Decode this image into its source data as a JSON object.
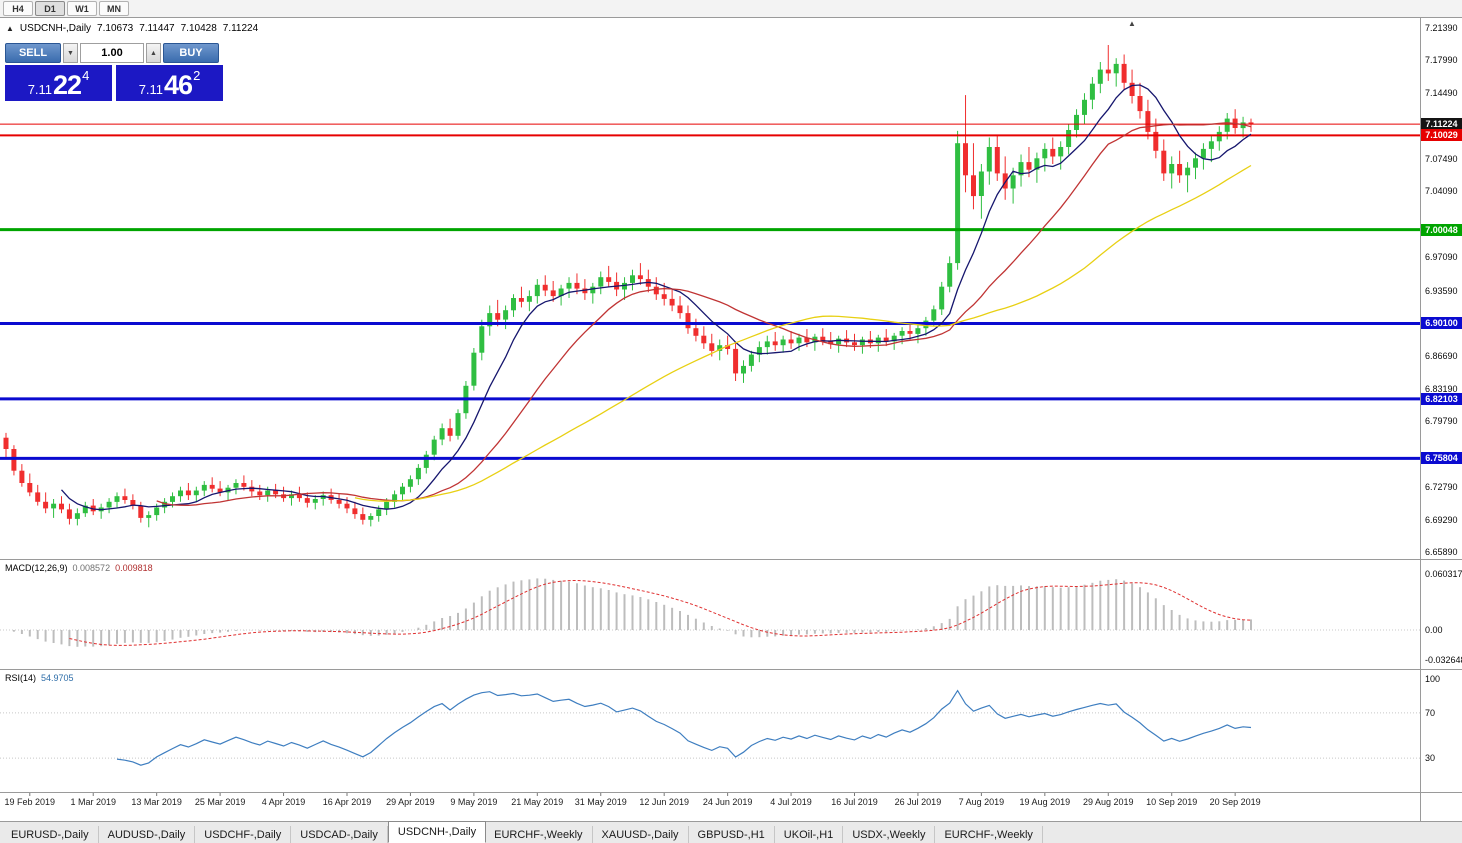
{
  "toolbar": {
    "timeframes": [
      {
        "label": "H4",
        "active": false
      },
      {
        "label": "D1",
        "active": true
      },
      {
        "label": "W1",
        "active": false
      },
      {
        "label": "MN",
        "active": false
      }
    ]
  },
  "header": {
    "collapse_icon": "▲",
    "symbol": "USDCNH-,Daily",
    "open": "7.10673",
    "high": "7.11447",
    "low": "7.10428",
    "close": "7.11224",
    "shift_marker_icon": "▲"
  },
  "trade_panel": {
    "sell_label": "SELL",
    "buy_label": "BUY",
    "volume": "1.00",
    "spinner_down_icon": "▼",
    "spinner_up_icon": "▲",
    "bid": {
      "prefix": "7.11",
      "big": "22",
      "sup": "4"
    },
    "ask": {
      "prefix": "7.11",
      "big": "46",
      "sup": "2"
    }
  },
  "indicator_labels": {
    "macd_name": "MACD(12,26,9)",
    "macd_value": "0.008572",
    "macd_signal_value": "0.009818",
    "rsi_name": "RSI(14)",
    "rsi_value": "54.9705"
  },
  "price_axis": {
    "ticks": [
      "7.21390",
      "7.17990",
      "7.14490",
      "7.07490",
      "7.04090",
      "6.97090",
      "6.93590",
      "6.86690",
      "6.83190",
      "6.79790",
      "6.72790",
      "6.69290",
      "6.65890"
    ],
    "badges": [
      {
        "text": "7.11224",
        "price": 7.11224,
        "bg": "#141414"
      },
      {
        "text": "7.10029",
        "price": 7.10029,
        "bg": "#e60000"
      },
      {
        "text": "7.00048",
        "price": 7.00048,
        "bg": "#00a400"
      },
      {
        "text": "6.90100",
        "price": 6.901,
        "bg": "#0b0bd0"
      },
      {
        "text": "6.82103",
        "price": 6.82103,
        "bg": "#0b0bd0"
      },
      {
        "text": "6.75804",
        "price": 6.75804,
        "bg": "#0b0bd0"
      }
    ]
  },
  "macd_axis": [
    {
      "text": "0.060317",
      "value": 0.060317
    },
    {
      "text": "0.00",
      "value": 0.0
    },
    {
      "text": "-0.032648",
      "value": -0.032648
    }
  ],
  "rsi_axis": [
    {
      "text": "100",
      "value": 100
    },
    {
      "text": "70",
      "value": 70
    },
    {
      "text": "30",
      "value": 30
    }
  ],
  "tabs": [
    {
      "label": "EURUSD-,Daily",
      "active": false
    },
    {
      "label": "AUDUSD-,Daily",
      "active": false
    },
    {
      "label": "USDCHF-,Daily",
      "active": false
    },
    {
      "label": "USDCAD-,Daily",
      "active": false
    },
    {
      "label": "USDCNH-,Daily",
      "active": true
    },
    {
      "label": "EURCHF-,Weekly",
      "active": false
    },
    {
      "label": "XAUUSD-,Daily",
      "active": false
    },
    {
      "label": "GBPUSD-,H1",
      "active": false
    },
    {
      "label": "UKOil-,H1",
      "active": false
    },
    {
      "label": "USDX-,Weekly",
      "active": false
    },
    {
      "label": "EURCHF-,Weekly",
      "active": false
    }
  ],
  "colors": {
    "up": "#2fbe41",
    "down": "#f02e2e",
    "ma_fast": "#16166e",
    "ma_mid": "#c03434",
    "ma_slow": "#e8d013",
    "macd_hist": "#bdbdbd",
    "macd_signal": "#e03030",
    "rsi": "#3e7ec0",
    "grid": "#9a9a9a"
  },
  "chart_data": {
    "type": "candlestick",
    "title": "USDCNH-,Daily",
    "ylim": [
      6.6525,
      7.2257
    ],
    "first_label_index": 3,
    "label_step": 8,
    "date_labels": [
      "19 Feb 2019",
      "1 Mar 2019",
      "13 Mar 2019",
      "25 Mar 2019",
      "4 Apr 2019",
      "16 Apr 2019",
      "29 Apr 2019",
      "9 May 2019",
      "21 May 2019",
      "31 May 2019",
      "12 Jun 2019",
      "24 Jun 2019",
      "4 Jul 2019",
      "16 Jul 2019",
      "26 Jul 2019",
      "7 Aug 2019",
      "19 Aug 2019",
      "29 Aug 2019",
      "10 Sep 2019",
      "20 Sep 2019"
    ],
    "hlines": [
      {
        "price": 7.11224,
        "color": "#e60000",
        "width": 1
      },
      {
        "price": 7.10029,
        "color": "#e60000",
        "width": 2
      },
      {
        "price": 7.00048,
        "color": "#00a400",
        "width": 3
      },
      {
        "price": 6.901,
        "color": "#0b0bd0",
        "width": 3
      },
      {
        "price": 6.82103,
        "color": "#0b0bd0",
        "width": 3
      },
      {
        "price": 6.75804,
        "color": "#0b0bd0",
        "width": 3
      }
    ],
    "moving_averages": [
      {
        "period": 8,
        "color_key": "ma_fast"
      },
      {
        "period": 20,
        "color_key": "ma_mid"
      },
      {
        "period": 45,
        "color_key": "ma_slow"
      }
    ],
    "macd": {
      "fast": 12,
      "slow": 26,
      "signal": 9,
      "ylim": [
        -0.0409,
        0.0754
      ],
      "current": "0.008572",
      "current_signal": "0.009818"
    },
    "rsi": {
      "period": 14,
      "ylim": [
        0,
        108
      ],
      "levels": [
        70,
        30
      ],
      "current": "54.9705"
    },
    "ohlc": [
      [
        6.78,
        6.785,
        6.758,
        6.768
      ],
      [
        6.768,
        6.772,
        6.74,
        6.745
      ],
      [
        6.745,
        6.752,
        6.728,
        6.732
      ],
      [
        6.732,
        6.742,
        6.718,
        6.722
      ],
      [
        6.722,
        6.73,
        6.708,
        6.712
      ],
      [
        6.712,
        6.722,
        6.7,
        6.705
      ],
      [
        6.705,
        6.715,
        6.695,
        6.71
      ],
      [
        6.71,
        6.718,
        6.7,
        6.704
      ],
      [
        6.704,
        6.71,
        6.688,
        6.694
      ],
      [
        6.694,
        6.705,
        6.687,
        6.7
      ],
      [
        6.7,
        6.712,
        6.696,
        6.708
      ],
      [
        6.708,
        6.715,
        6.698,
        6.702
      ],
      [
        6.702,
        6.71,
        6.694,
        6.706
      ],
      [
        6.706,
        6.716,
        6.7,
        6.712
      ],
      [
        6.712,
        6.722,
        6.706,
        6.718
      ],
      [
        6.718,
        6.726,
        6.71,
        6.714
      ],
      [
        6.714,
        6.72,
        6.704,
        6.708
      ],
      [
        6.708,
        6.712,
        6.69,
        6.695
      ],
      [
        6.695,
        6.702,
        6.685,
        6.698
      ],
      [
        6.698,
        6.71,
        6.692,
        6.706
      ],
      [
        6.706,
        6.716,
        6.7,
        6.712
      ],
      [
        6.712,
        6.722,
        6.706,
        6.718
      ],
      [
        6.718,
        6.728,
        6.712,
        6.724
      ],
      [
        6.724,
        6.732,
        6.714,
        6.719
      ],
      [
        6.719,
        6.728,
        6.712,
        6.724
      ],
      [
        6.724,
        6.734,
        6.718,
        6.73
      ],
      [
        6.73,
        6.738,
        6.722,
        6.726
      ],
      [
        6.726,
        6.734,
        6.718,
        6.722
      ],
      [
        6.722,
        6.73,
        6.714,
        6.727
      ],
      [
        6.727,
        6.736,
        6.72,
        6.732
      ],
      [
        6.732,
        6.74,
        6.724,
        6.728
      ],
      [
        6.728,
        6.735,
        6.718,
        6.723
      ],
      [
        6.723,
        6.73,
        6.714,
        6.719
      ],
      [
        6.719,
        6.728,
        6.712,
        6.724
      ],
      [
        6.724,
        6.731,
        6.716,
        6.72
      ],
      [
        6.72,
        6.728,
        6.712,
        6.716
      ],
      [
        6.716,
        6.724,
        6.708,
        6.72
      ],
      [
        6.72,
        6.728,
        6.712,
        6.716
      ],
      [
        6.716,
        6.722,
        6.706,
        6.711
      ],
      [
        6.711,
        6.719,
        6.704,
        6.715
      ],
      [
        6.715,
        6.723,
        6.708,
        6.719
      ],
      [
        6.719,
        6.726,
        6.71,
        6.714
      ],
      [
        6.714,
        6.721,
        6.705,
        6.71
      ],
      [
        6.71,
        6.717,
        6.7,
        6.705
      ],
      [
        6.705,
        6.712,
        6.694,
        6.699
      ],
      [
        6.699,
        6.706,
        6.688,
        6.693
      ],
      [
        6.693,
        6.7,
        6.686,
        6.697
      ],
      [
        6.697,
        6.708,
        6.691,
        6.704
      ],
      [
        6.704,
        6.716,
        6.698,
        6.712
      ],
      [
        6.712,
        6.724,
        6.706,
        6.72
      ],
      [
        6.72,
        6.732,
        6.714,
        6.728
      ],
      [
        6.728,
        6.74,
        6.722,
        6.736
      ],
      [
        6.736,
        6.752,
        6.73,
        6.748
      ],
      [
        6.748,
        6.766,
        6.742,
        6.762
      ],
      [
        6.762,
        6.782,
        6.756,
        6.778
      ],
      [
        6.778,
        6.795,
        6.772,
        6.79
      ],
      [
        6.79,
        6.8,
        6.776,
        6.782
      ],
      [
        6.782,
        6.81,
        6.778,
        6.806
      ],
      [
        6.806,
        6.84,
        6.8,
        6.835
      ],
      [
        6.835,
        6.875,
        6.83,
        6.87
      ],
      [
        6.87,
        6.905,
        6.862,
        6.898
      ],
      [
        6.898,
        6.92,
        6.888,
        6.912
      ],
      [
        6.912,
        6.926,
        6.898,
        6.905
      ],
      [
        6.905,
        6.92,
        6.895,
        6.915
      ],
      [
        6.915,
        6.932,
        6.908,
        6.928
      ],
      [
        6.928,
        6.94,
        6.918,
        6.924
      ],
      [
        6.924,
        6.936,
        6.914,
        6.93
      ],
      [
        6.93,
        6.948,
        6.922,
        6.942
      ],
      [
        6.942,
        6.952,
        6.93,
        6.936
      ],
      [
        6.936,
        6.946,
        6.924,
        6.93
      ],
      [
        6.93,
        6.942,
        6.92,
        6.938
      ],
      [
        6.938,
        6.95,
        6.928,
        6.944
      ],
      [
        6.944,
        6.954,
        6.932,
        6.938
      ],
      [
        6.938,
        6.948,
        6.926,
        6.933
      ],
      [
        6.933,
        6.944,
        6.922,
        6.94
      ],
      [
        6.94,
        6.956,
        6.932,
        6.95
      ],
      [
        6.95,
        6.962,
        6.94,
        6.945
      ],
      [
        6.945,
        6.955,
        6.93,
        6.937
      ],
      [
        6.937,
        6.95,
        6.926,
        6.944
      ],
      [
        6.944,
        6.958,
        6.936,
        6.952
      ],
      [
        6.952,
        6.965,
        6.942,
        6.948
      ],
      [
        6.948,
        6.958,
        6.934,
        6.94
      ],
      [
        6.94,
        6.95,
        6.926,
        6.932
      ],
      [
        6.932,
        6.944,
        6.92,
        6.927
      ],
      [
        6.927,
        6.938,
        6.914,
        6.92
      ],
      [
        6.92,
        6.93,
        6.906,
        6.912
      ],
      [
        6.912,
        6.92,
        6.89,
        6.896
      ],
      [
        6.896,
        6.906,
        6.882,
        6.888
      ],
      [
        6.888,
        6.898,
        6.874,
        6.88
      ],
      [
        6.88,
        6.89,
        6.866,
        6.872
      ],
      [
        6.872,
        6.884,
        6.862,
        6.878
      ],
      [
        6.878,
        6.888,
        6.868,
        6.874
      ],
      [
        6.874,
        6.88,
        6.84,
        6.848
      ],
      [
        6.848,
        6.862,
        6.838,
        6.856
      ],
      [
        6.856,
        6.872,
        6.85,
        6.868
      ],
      [
        6.868,
        6.882,
        6.86,
        6.876
      ],
      [
        6.876,
        6.888,
        6.868,
        6.882
      ],
      [
        6.882,
        6.892,
        6.872,
        6.878
      ],
      [
        6.878,
        6.888,
        6.87,
        6.884
      ],
      [
        6.884,
        6.893,
        6.874,
        6.88
      ],
      [
        6.88,
        6.89,
        6.872,
        6.886
      ],
      [
        6.886,
        6.895,
        6.876,
        6.881
      ],
      [
        6.881,
        6.89,
        6.872,
        6.887
      ],
      [
        6.887,
        6.896,
        6.878,
        6.883
      ],
      [
        6.883,
        6.892,
        6.874,
        6.879
      ],
      [
        6.879,
        6.888,
        6.87,
        6.885
      ],
      [
        6.885,
        6.894,
        6.876,
        6.881
      ],
      [
        6.881,
        6.89,
        6.872,
        6.878
      ],
      [
        6.878,
        6.887,
        6.869,
        6.884
      ],
      [
        6.884,
        6.893,
        6.875,
        6.88
      ],
      [
        6.88,
        6.889,
        6.871,
        6.886
      ],
      [
        6.886,
        6.895,
        6.877,
        6.882
      ],
      [
        6.882,
        6.891,
        6.873,
        6.888
      ],
      [
        6.888,
        6.897,
        6.879,
        6.893
      ],
      [
        6.893,
        6.902,
        6.884,
        6.89
      ],
      [
        6.89,
        6.9,
        6.88,
        6.896
      ],
      [
        6.896,
        6.908,
        6.888,
        6.904
      ],
      [
        6.904,
        6.92,
        6.898,
        6.916
      ],
      [
        6.916,
        6.945,
        6.91,
        6.94
      ],
      [
        6.94,
        6.972,
        6.934,
        6.965
      ],
      [
        6.965,
        7.105,
        6.958,
        7.092
      ],
      [
        7.092,
        7.143,
        7.04,
        7.058
      ],
      [
        7.058,
        7.092,
        7.022,
        7.036
      ],
      [
        7.036,
        7.07,
        7.012,
        7.062
      ],
      [
        7.062,
        7.098,
        7.048,
        7.088
      ],
      [
        7.088,
        7.1,
        7.052,
        7.06
      ],
      [
        7.06,
        7.078,
        7.032,
        7.044
      ],
      [
        7.044,
        7.066,
        7.028,
        7.058
      ],
      [
        7.058,
        7.08,
        7.046,
        7.072
      ],
      [
        7.072,
        7.088,
        7.056,
        7.064
      ],
      [
        7.064,
        7.082,
        7.05,
        7.076
      ],
      [
        7.076,
        7.092,
        7.062,
        7.086
      ],
      [
        7.086,
        7.098,
        7.07,
        7.078
      ],
      [
        7.078,
        7.094,
        7.064,
        7.088
      ],
      [
        7.088,
        7.112,
        7.08,
        7.106
      ],
      [
        7.106,
        7.128,
        7.098,
        7.122
      ],
      [
        7.122,
        7.145,
        7.112,
        7.138
      ],
      [
        7.138,
        7.162,
        7.128,
        7.155
      ],
      [
        7.155,
        7.178,
        7.145,
        7.17
      ],
      [
        7.17,
        7.196,
        7.158,
        7.166
      ],
      [
        7.166,
        7.182,
        7.152,
        7.176
      ],
      [
        7.176,
        7.186,
        7.148,
        7.156
      ],
      [
        7.156,
        7.17,
        7.134,
        7.142
      ],
      [
        7.142,
        7.156,
        7.118,
        7.126
      ],
      [
        7.126,
        7.138,
        7.096,
        7.104
      ],
      [
        7.104,
        7.118,
        7.076,
        7.084
      ],
      [
        7.084,
        7.096,
        7.052,
        7.06
      ],
      [
        7.06,
        7.078,
        7.044,
        7.07
      ],
      [
        7.07,
        7.084,
        7.05,
        7.058
      ],
      [
        7.058,
        7.072,
        7.04,
        7.066
      ],
      [
        7.066,
        7.082,
        7.054,
        7.076
      ],
      [
        7.076,
        7.092,
        7.064,
        7.086
      ],
      [
        7.086,
        7.1,
        7.072,
        7.094
      ],
      [
        7.094,
        7.11,
        7.084,
        7.104
      ],
      [
        7.104,
        7.124,
        7.096,
        7.118
      ],
      [
        7.118,
        7.128,
        7.102,
        7.108
      ],
      [
        7.108,
        7.12,
        7.098,
        7.114
      ],
      [
        7.114,
        7.118,
        7.104,
        7.112
      ]
    ]
  }
}
